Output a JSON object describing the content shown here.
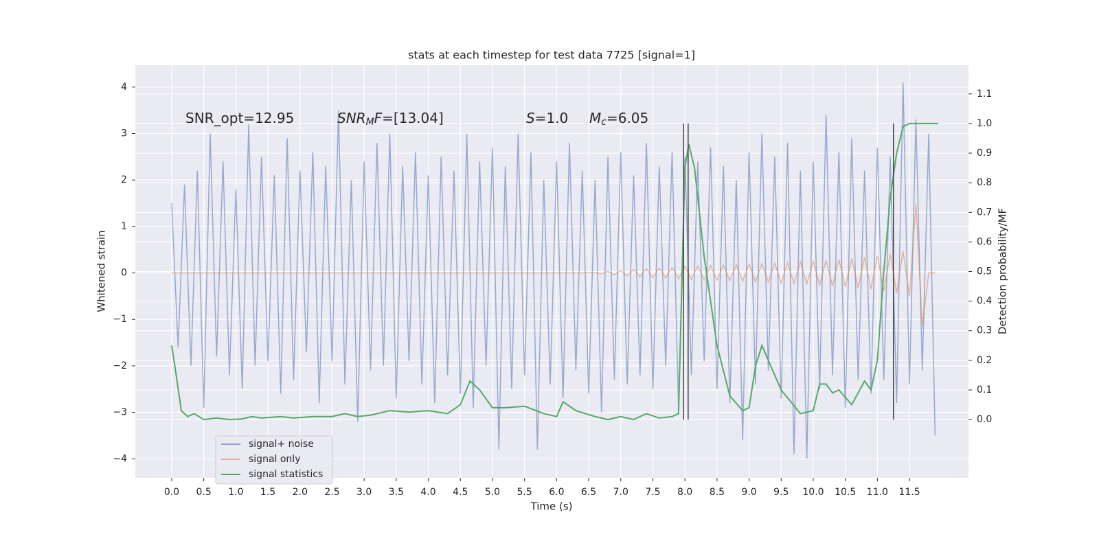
{
  "chart_data": {
    "type": "line",
    "title": "stats at each timestep for test data 7725 [signal=1]",
    "x_label": "Time (s)",
    "y_label": "Whitened strain",
    "y2_label": "Detection probability/MF",
    "xlim": [
      -0.567,
      12.42
    ],
    "ylim": [
      -4.41,
      4.47
    ],
    "y2lim": [
      -0.197,
      1.197
    ],
    "grid": true,
    "legend": "lower left",
    "xticks": [
      {
        "value": 0,
        "label": "0.0"
      },
      {
        "value": 0.5,
        "label": "0.5"
      },
      {
        "value": 1,
        "label": "1.0"
      },
      {
        "value": 1.5,
        "label": "1.5"
      },
      {
        "value": 2,
        "label": "2.0"
      },
      {
        "value": 2.5,
        "label": "2.5"
      },
      {
        "value": 3,
        "label": "3.0"
      },
      {
        "value": 3.5,
        "label": "3.5"
      },
      {
        "value": 4,
        "label": "4.0"
      },
      {
        "value": 4.5,
        "label": "4.5"
      },
      {
        "value": 5,
        "label": "5.0"
      },
      {
        "value": 5.5,
        "label": "5.5"
      },
      {
        "value": 6,
        "label": "6.0"
      },
      {
        "value": 6.5,
        "label": "6.5"
      },
      {
        "value": 7,
        "label": "7.0"
      },
      {
        "value": 7.5,
        "label": "7.5"
      },
      {
        "value": 8,
        "label": "8.0"
      },
      {
        "value": 8.5,
        "label": "8.5"
      },
      {
        "value": 9,
        "label": "9.0"
      },
      {
        "value": 9.5,
        "label": "9.5"
      },
      {
        "value": 10,
        "label": "10.0"
      },
      {
        "value": 10.5,
        "label": "10.5"
      },
      {
        "value": 11,
        "label": "11.0"
      },
      {
        "value": 11.5,
        "label": "11.5"
      }
    ],
    "yticks": [
      {
        "value": -4,
        "label": "−4"
      },
      {
        "value": -3,
        "label": "−3"
      },
      {
        "value": -2,
        "label": "−2"
      },
      {
        "value": -1,
        "label": "−1"
      },
      0,
      1,
      2,
      3,
      4
    ],
    "y2ticks": [
      {
        "value": 0,
        "label": "0.0"
      },
      {
        "value": 0.1,
        "label": "0.1"
      },
      {
        "value": 0.2,
        "label": "0.2"
      },
      {
        "value": 0.3,
        "label": "0.3"
      },
      {
        "value": 0.4,
        "label": "0.4"
      },
      {
        "value": 0.5,
        "label": "0.5"
      },
      {
        "value": 0.6,
        "label": "0.6"
      },
      {
        "value": 0.7,
        "label": "0.7"
      },
      {
        "value": 0.8,
        "label": "0.8"
      },
      {
        "value": 0.9,
        "label": "0.9"
      },
      {
        "value": 1,
        "label": "1.0"
      },
      {
        "value": 1.1,
        "label": "1.1"
      }
    ],
    "annotations": [
      [
        "SNR_opt=12.95"
      ],
      [
        "SNR",
        "M",
        "F",
        "=[13.04]"
      ],
      [
        "S",
        "=1.0"
      ],
      [
        "M",
        "c",
        "=6.05"
      ]
    ],
    "series": [
      {
        "name": "signal+ noise",
        "color": "#4c72b0",
        "x": [
          0,
          0.1,
          0.2,
          0.3,
          0.4,
          0.5,
          0.6,
          0.7,
          0.8,
          0.9,
          1,
          1.1,
          1.2,
          1.3,
          1.4,
          1.5,
          1.6,
          1.7,
          1.8,
          1.9,
          2,
          2.1,
          2.2,
          2.3,
          2.4,
          2.5,
          2.6,
          2.7,
          2.8,
          2.9,
          3,
          3.1,
          3.2,
          3.3,
          3.4,
          3.5,
          3.6,
          3.7,
          3.8,
          3.9,
          4,
          4.1,
          4.2,
          4.3,
          4.4,
          4.5,
          4.6,
          4.7,
          4.8,
          4.9,
          5,
          5.1,
          5.2,
          5.3,
          5.4,
          5.5,
          5.6,
          5.7,
          5.8,
          5.9,
          6,
          6.1,
          6.2,
          6.3,
          6.4,
          6.5,
          6.6,
          6.7,
          6.8,
          6.9,
          7,
          7.1,
          7.2,
          7.3,
          7.4,
          7.5,
          7.6,
          7.7,
          7.8,
          7.9,
          8,
          8.1,
          8.2,
          8.3,
          8.4,
          8.5,
          8.6,
          8.7,
          8.8,
          8.9,
          9,
          9.1,
          9.2,
          9.3,
          9.4,
          9.5,
          9.6,
          9.7,
          9.8,
          9.9,
          10,
          10.1,
          10.2,
          10.3,
          10.4,
          10.5,
          10.6,
          10.7,
          10.8,
          10.9,
          11,
          11.1,
          11.2,
          11.3,
          11.4,
          11.5,
          11.6,
          11.7,
          11.8,
          11.9
        ],
        "values": [
          1.5,
          -1.6,
          1.9,
          -2.0,
          2.2,
          -2.9,
          3.0,
          -1.8,
          2.4,
          -2.2,
          1.8,
          -2.5,
          3.2,
          -2.0,
          2.5,
          -1.9,
          2.1,
          -2.6,
          2.9,
          -2.3,
          2.2,
          -1.7,
          2.6,
          -2.8,
          2.3,
          -1.9,
          3.5,
          -2.4,
          2.0,
          -3.2,
          2.4,
          -2.1,
          2.8,
          -2.0,
          3.0,
          -2.7,
          2.3,
          -1.9,
          2.6,
          -2.4,
          2.1,
          -2.8,
          2.5,
          -2.2,
          2.2,
          -2.6,
          3.0,
          -2.9,
          2.4,
          -2.0,
          2.7,
          -3.8,
          2.3,
          -2.5,
          3.0,
          -2.2,
          2.6,
          -3.8,
          2.0,
          -2.4,
          2.4,
          -2.7,
          2.8,
          -2.1,
          2.2,
          -2.6,
          2.0,
          -3.0,
          2.5,
          -2.3,
          2.6,
          -2.4,
          2.1,
          -2.2,
          2.8,
          -2.5,
          2.3,
          -2.0,
          2.6,
          -2.9,
          2.5,
          -2.2,
          2.4,
          -1.9,
          2.7,
          -2.5,
          2.3,
          -2.8,
          2.0,
          -3.6,
          2.6,
          -2.4,
          3.0,
          -2.1,
          2.5,
          -2.7,
          2.8,
          -3.9,
          2.2,
          -4.0,
          2.4,
          -2.5,
          3.4,
          -2.2,
          2.6,
          -2.9,
          2.9,
          -2.3,
          2.2,
          -2.6,
          2.7,
          -2.3,
          2.5,
          -2.8,
          4.1,
          -2.4,
          3.3,
          -2.1,
          3.0,
          -3.5
        ]
      },
      {
        "name": "signal only",
        "color": "#dd8452",
        "x": [
          0,
          0.1,
          0.2,
          0.3,
          0.4,
          0.5,
          0.6,
          0.7,
          0.8,
          0.9,
          1,
          1.1,
          1.2,
          1.3,
          1.4,
          1.5,
          1.6,
          1.7,
          1.8,
          1.9,
          2,
          2.1,
          2.2,
          2.3,
          2.4,
          2.5,
          2.6,
          2.7,
          2.8,
          2.9,
          3,
          3.1,
          3.2,
          3.3,
          3.4,
          3.5,
          3.6,
          3.7,
          3.8,
          3.9,
          4,
          4.1,
          4.2,
          4.3,
          4.4,
          4.5,
          4.6,
          4.7,
          4.8,
          4.9,
          5,
          5.1,
          5.2,
          5.3,
          5.4,
          5.5,
          5.6,
          5.7,
          5.8,
          5.9,
          6,
          6.1,
          6.2,
          6.3,
          6.4,
          6.5,
          6.6,
          6.7,
          6.8,
          6.9,
          7,
          7.1,
          7.2,
          7.3,
          7.4,
          7.5,
          7.6,
          7.7,
          7.8,
          7.9,
          8,
          8.1,
          8.2,
          8.3,
          8.4,
          8.5,
          8.6,
          8.7,
          8.8,
          8.9,
          9,
          9.1,
          9.2,
          9.3,
          9.4,
          9.5,
          9.6,
          9.7,
          9.8,
          9.9,
          10,
          10.1,
          10.2,
          10.3,
          10.4,
          10.5,
          10.6,
          10.7,
          10.8,
          10.9,
          11,
          11.1,
          11.2,
          11.3,
          11.4,
          11.5,
          11.6,
          11.7,
          11.8,
          11.9
        ],
        "values": [
          0,
          0,
          0,
          0,
          0,
          0,
          0,
          0,
          0,
          0,
          0,
          0,
          0,
          0,
          0,
          0,
          0,
          0,
          0,
          0,
          0,
          0,
          0,
          0,
          0,
          0,
          0,
          0,
          0,
          0,
          0,
          0,
          0,
          0,
          0,
          0,
          0,
          0,
          0,
          0,
          0,
          0,
          0,
          0,
          0,
          0,
          0,
          0,
          0,
          0,
          0,
          0,
          0,
          0,
          0,
          0,
          0,
          0,
          0,
          0,
          0,
          0,
          0,
          0,
          0,
          0,
          0.01,
          -0.02,
          0.03,
          -0.04,
          0.05,
          -0.06,
          0.07,
          -0.08,
          0.09,
          -0.1,
          0.1,
          -0.11,
          0.12,
          -0.13,
          0.14,
          -0.14,
          0.15,
          -0.15,
          0.16,
          -0.16,
          0.17,
          -0.17,
          0.18,
          -0.18,
          0.19,
          -0.19,
          0.2,
          -0.2,
          0.21,
          -0.22,
          0.22,
          -0.23,
          0.24,
          -0.24,
          0.25,
          -0.26,
          0.27,
          -0.28,
          0.29,
          -0.3,
          0.31,
          -0.32,
          0.34,
          -0.35,
          0.37,
          -0.39,
          0.41,
          -0.44,
          0.47,
          -0.5,
          1.5,
          -1.15,
          0,
          0
        ]
      },
      {
        "name": "signal statistics",
        "color": "#55a868",
        "axis": "y2",
        "x": [
          0,
          0.05,
          0.15,
          0.25,
          0.35,
          0.5,
          0.7,
          0.9,
          1.1,
          1.25,
          1.4,
          1.7,
          1.9,
          2.2,
          2.5,
          2.7,
          2.9,
          3.1,
          3.4,
          3.7,
          4.0,
          4.3,
          4.5,
          4.65,
          4.8,
          5.0,
          5.2,
          5.5,
          5.8,
          6.0,
          6.1,
          6.3,
          6.6,
          6.8,
          7.0,
          7.2,
          7.4,
          7.6,
          7.8,
          7.9,
          8.0,
          8.06,
          8.15,
          8.3,
          8.5,
          8.7,
          8.9,
          9.0,
          9.1,
          9.2,
          9.3,
          9.5,
          9.8,
          10.0,
          10.1,
          10.2,
          10.3,
          10.4,
          10.6,
          10.8,
          10.9,
          11.0,
          11.1,
          11.2,
          11.3,
          11.4,
          11.5,
          11.95
        ],
        "values": [
          0.25,
          0.18,
          0.03,
          0.01,
          0.02,
          0.0,
          0.005,
          0.0,
          0.002,
          0.01,
          0.005,
          0.01,
          0.005,
          0.01,
          0.01,
          0.02,
          0.01,
          0.015,
          0.03,
          0.025,
          0.03,
          0.02,
          0.05,
          0.13,
          0.1,
          0.04,
          0.04,
          0.045,
          0.02,
          0.01,
          0.06,
          0.03,
          0.01,
          0.0,
          0.01,
          0.0,
          0.02,
          0.005,
          0.01,
          0.02,
          0.85,
          0.93,
          0.85,
          0.55,
          0.25,
          0.08,
          0.03,
          0.04,
          0.18,
          0.25,
          0.2,
          0.1,
          0.02,
          0.03,
          0.12,
          0.12,
          0.09,
          0.1,
          0.05,
          0.13,
          0.1,
          0.2,
          0.5,
          0.75,
          0.9,
          0.99,
          1.0,
          1.0
        ]
      }
    ],
    "vlines": {
      "x": [
        7.98,
        8.05,
        11.25
      ],
      "y2range": [
        0,
        1
      ],
      "color": "#444444"
    }
  }
}
